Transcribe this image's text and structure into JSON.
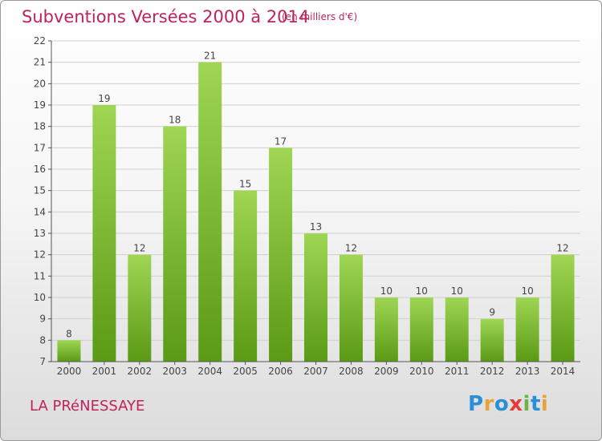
{
  "header": {
    "title": "Subventions Versées 2000 à 2014",
    "unit": "(en milliers d'€)"
  },
  "footer": {
    "commune": "LA PRéNESSAYE",
    "logo_text": "Proxiti",
    "logo_letters": [
      {
        "ch": "P",
        "color": "#2a8fd6"
      },
      {
        "ch": "r",
        "color": "#e8a13b"
      },
      {
        "ch": "o",
        "color": "#2a8fd6"
      },
      {
        "ch": "x",
        "color": "#e53a3a"
      },
      {
        "ch": "i",
        "color": "#6cb34a"
      },
      {
        "ch": "t",
        "color": "#2a8fd6"
      },
      {
        "ch": "i",
        "color": "#e8a13b"
      }
    ]
  },
  "colors": {
    "accent": "#c0235b",
    "bar_top": "#9fd654",
    "bar_bottom": "#5a9a15",
    "axis": "#555555",
    "grid": "#d0d0d0"
  },
  "chart_data": {
    "type": "bar",
    "title": "Subventions Versées 2000 à 2014",
    "xlabel": "",
    "ylabel": "(en milliers d'€)",
    "categories": [
      "2000",
      "2001",
      "2002",
      "2003",
      "2004",
      "2005",
      "2006",
      "2007",
      "2008",
      "2009",
      "2010",
      "2011",
      "2012",
      "2013",
      "2014"
    ],
    "values": [
      8,
      19,
      12,
      18,
      21,
      15,
      17,
      13,
      12,
      10,
      10,
      10,
      9,
      10,
      12
    ],
    "ylim": [
      7,
      22
    ],
    "yticks": [
      7,
      8,
      9,
      10,
      11,
      12,
      13,
      14,
      15,
      16,
      17,
      18,
      19,
      20,
      21,
      22
    ],
    "grid": true,
    "data_labels": true
  }
}
